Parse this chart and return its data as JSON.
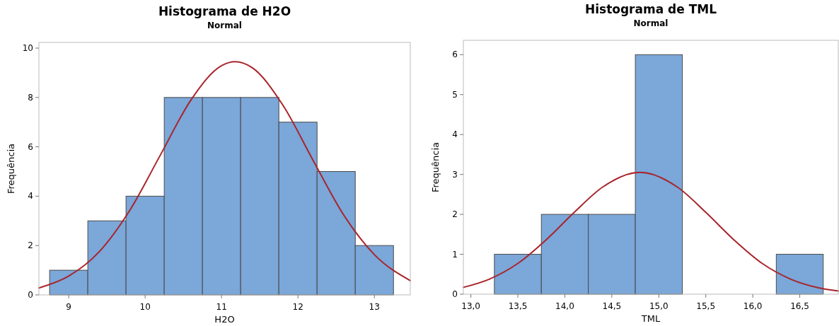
{
  "chart_data": [
    {
      "type": "histogram",
      "title": "Histograma de H2O",
      "subtitle": "Normal",
      "xlabel": "H2O",
      "ylabel": "Frequência",
      "bins": [
        8.75,
        9.25,
        9.75,
        10.25,
        10.75,
        11.25,
        11.75,
        12.25,
        12.75,
        13.25
      ],
      "values": [
        1,
        3,
        4,
        8,
        8,
        8,
        7,
        5,
        2
      ],
      "color": "#7ba7d9",
      "xlim": [
        8.61,
        13.47
      ],
      "ylim": [
        0,
        10.23
      ],
      "xticks": [
        9,
        10,
        11,
        12,
        13
      ],
      "yticks": [
        0,
        2,
        4,
        6,
        8,
        10
      ],
      "grid": false,
      "series": [
        {
          "type": "line",
          "color": "#a8252b",
          "x": [
            8.61,
            9.0,
            9.4,
            9.8,
            10.2,
            10.6,
            11.0,
            11.18,
            11.4,
            11.8,
            12.2,
            12.6,
            13.0,
            13.47
          ],
          "values": [
            0.28,
            0.76,
            1.75,
            3.43,
            5.67,
            7.9,
            9.29,
            9.45,
            9.21,
            7.7,
            5.44,
            3.23,
            1.63,
            0.58
          ]
        }
      ]
    },
    {
      "type": "histogram",
      "title": "Histograma de TML",
      "subtitle": "Normal",
      "xlabel": "TML",
      "ylabel": "Frequência",
      "bins": [
        13.25,
        13.75,
        14.25,
        14.75,
        15.25,
        15.75,
        16.25,
        16.75
      ],
      "values": [
        1,
        2,
        2,
        6,
        0,
        0,
        1
      ],
      "color": "#7ba7d9",
      "xlim": [
        12.92,
        16.91
      ],
      "ylim": [
        0,
        6.36
      ],
      "xticks": [
        {
          "value": 13,
          "label": "13,0"
        },
        {
          "value": 13.5,
          "label": "13,5"
        },
        {
          "value": 14,
          "label": "14,0"
        },
        {
          "value": 14.5,
          "label": "14,5"
        },
        {
          "value": 15,
          "label": "15,0"
        },
        {
          "value": 15.5,
          "label": "15,5"
        },
        {
          "value": 16,
          "label": "16,0"
        },
        {
          "value": 16.5,
          "label": "16,5"
        }
      ],
      "yticks": [
        0,
        1,
        2,
        3,
        4,
        5,
        6
      ],
      "grid": false,
      "series": [
        {
          "type": "line",
          "color": "#a8252b",
          "x": [
            12.92,
            13.2,
            13.5,
            13.8,
            14.1,
            14.4,
            14.8,
            15.2,
            15.5,
            15.8,
            16.1,
            16.4,
            16.7,
            16.91
          ],
          "values": [
            0.17,
            0.38,
            0.77,
            1.36,
            2.05,
            2.68,
            3.05,
            2.68,
            2.05,
            1.36,
            0.77,
            0.38,
            0.16,
            0.08
          ]
        }
      ]
    }
  ]
}
